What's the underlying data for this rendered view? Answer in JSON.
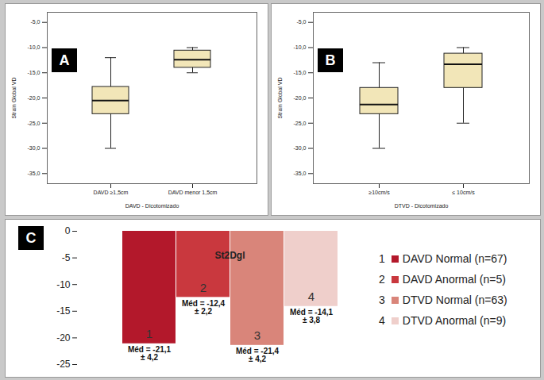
{
  "chart_data": [
    {
      "type": "box",
      "panel_label": "A",
      "y_label": "Strain Global VD",
      "x_label": "DAVD - Dicotomizado",
      "categories": [
        "DAVD ≥1,5cm",
        "DAVD menor 1,5cm"
      ],
      "min": [
        -30,
        -15
      ],
      "q1": [
        -23.2,
        -14
      ],
      "median": [
        -20.5,
        -12.4
      ],
      "q3": [
        -17.8,
        -10.6
      ],
      "max": [
        -12,
        -10
      ],
      "color": "#f2e6b8",
      "ylim": [
        -37,
        -3
      ],
      "yticks": [
        {
          "value": -35,
          "label": "-35,0"
        },
        {
          "value": -30,
          "label": "-30,0"
        },
        {
          "value": -25,
          "label": "-25,0"
        },
        {
          "value": -20,
          "label": "-20,0"
        },
        {
          "value": -15,
          "label": "-15,0"
        },
        {
          "value": -10,
          "label": "-10,0"
        },
        {
          "value": -5,
          "label": "-5,0"
        }
      ]
    },
    {
      "type": "box",
      "panel_label": "B",
      "y_label": "Strain Global VD",
      "x_label": "DTVD - Dicotomizado",
      "categories": [
        "≥10cm/s",
        "≤ 10cm/s"
      ],
      "min": [
        -30,
        -25
      ],
      "q1": [
        -23.2,
        -18
      ],
      "median": [
        -21.3,
        -13.3
      ],
      "q3": [
        -18,
        -11.2
      ],
      "max": [
        -13,
        -10
      ],
      "color": "#f2e6b8",
      "ylim": [
        -37,
        -3
      ],
      "yticks": [
        {
          "value": -35,
          "label": "-35,0"
        },
        {
          "value": -30,
          "label": "-30,0"
        },
        {
          "value": -25,
          "label": "-25,0"
        },
        {
          "value": -20,
          "label": "-20,0"
        },
        {
          "value": -15,
          "label": "-15,0"
        },
        {
          "value": -10,
          "label": "-10,0"
        },
        {
          "value": -5,
          "label": "-5,0"
        }
      ]
    },
    {
      "type": "bar",
      "panel_label": "C",
      "title": "St2Dgl",
      "categories": [
        "1",
        "2",
        "3",
        "4"
      ],
      "legend_labels": [
        "DAVD Normal (n=67)",
        "DAVD Anormal (n=5)",
        "DTVD Normal (n=63)",
        "DTVD Anormal (n=9)"
      ],
      "values": [
        -21.1,
        -12.4,
        -21.4,
        -14.1
      ],
      "value_labels": [
        "Méd = -21,1\n± 4,2",
        "Méd = -12,4\n± 2,2",
        "Méd = -21,4\n± 4,2",
        "Méd = -14,1\n± 3,8"
      ],
      "colors": [
        "#b3182b",
        "#c9383e",
        "#d9857a",
        "#efcfcb"
      ],
      "data_labels": true,
      "legend": "right",
      "ylim": [
        -25,
        0
      ],
      "yticks": [
        0,
        -5,
        -10,
        -15,
        -20,
        -25
      ]
    }
  ]
}
